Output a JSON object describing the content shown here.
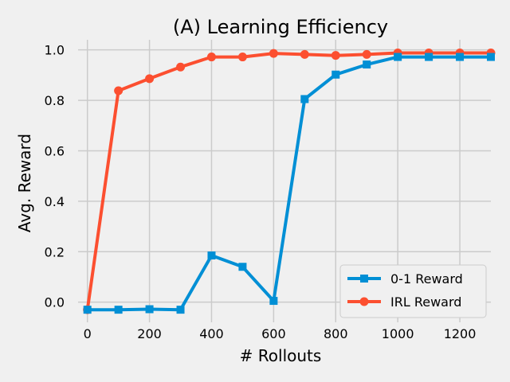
{
  "chart_data": {
    "type": "line",
    "title": "(A) Learning Efficiency",
    "xlabel": "# Rollouts",
    "ylabel": "Avg. Reward",
    "xlim": [
      -30,
      1300
    ],
    "ylim": [
      -0.08,
      1.04
    ],
    "xticks": [
      0,
      200,
      400,
      600,
      800,
      1000,
      1200
    ],
    "yticks": [
      0.0,
      0.2,
      0.4,
      0.6,
      0.8,
      1.0
    ],
    "xtick_labels": [
      "0",
      "200",
      "400",
      "600",
      "800",
      "1000",
      "1200"
    ],
    "ytick_labels": [
      "0.0",
      "0.2",
      "0.4",
      "0.6",
      "0.8",
      "1.0"
    ],
    "grid": true,
    "legend_position": "lower-right",
    "x": [
      0,
      100,
      200,
      300,
      400,
      500,
      600,
      700,
      800,
      900,
      1000,
      1100,
      1200,
      1300
    ],
    "series": [
      {
        "name": "0-1 Reward",
        "color": "#008fd5",
        "marker": "square",
        "values": [
          -0.03,
          -0.03,
          -0.028,
          -0.03,
          0.185,
          0.14,
          0.005,
          0.805,
          0.902,
          0.942,
          0.972,
          0.972,
          0.972,
          0.972
        ]
      },
      {
        "name": "IRL Reward",
        "color": "#fc4f30",
        "marker": "circle",
        "values": [
          -0.03,
          0.838,
          0.886,
          0.932,
          0.972,
          0.972,
          0.986,
          0.982,
          0.978,
          0.982,
          0.988,
          0.988,
          0.988,
          0.988
        ]
      }
    ]
  }
}
